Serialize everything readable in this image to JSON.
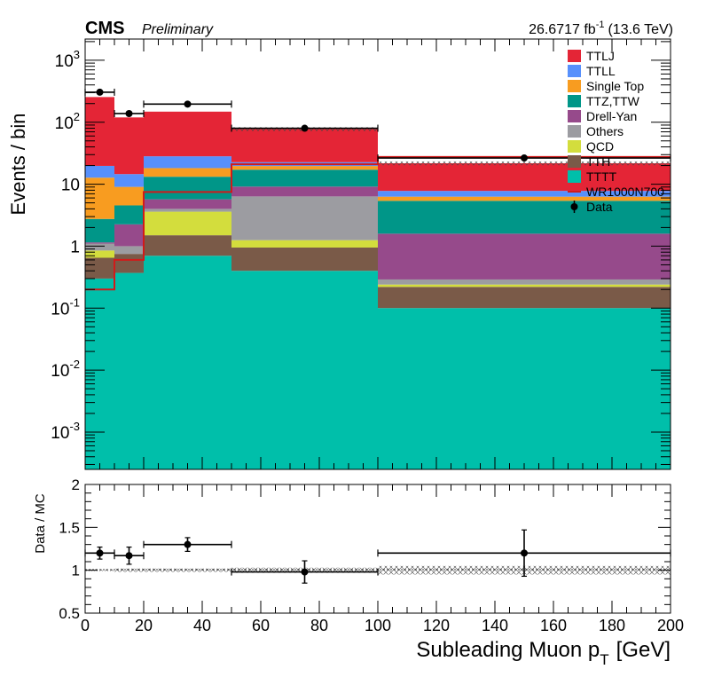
{
  "header": {
    "cms": "CMS",
    "preliminary": "Preliminary",
    "lumi": "26.6717 fb",
    "lumi_sup": "-1",
    "energy": "(13.6 TeV)"
  },
  "colors": {
    "TTLJ": "#e42536",
    "TTLL": "#5790fc",
    "Single Top": "#f89c20",
    "TTZ,TTW": "#009688",
    "Drell-Yan": "#964a8b",
    "Others": "#9c9ca1",
    "QCD": "#d3dd3d",
    "TTH": "#7a5a48",
    "TTTT": "#00bfaa",
    "WR1000N700": "#d11a1a",
    "Data": "#000000"
  },
  "chart_data": [
    {
      "type": "bar",
      "subtype": "stacked histogram (log scale)",
      "ylabel": "Events / bin",
      "yscale": "log",
      "ylim": [
        0.00025,
        2200
      ],
      "xlim": [
        0,
        200
      ],
      "ytick_labels": [
        "10^{-3}",
        "10^{-2}",
        "10^{-1}",
        "1",
        "10",
        "10^{2}",
        "10^{3}"
      ],
      "bin_edges": [
        0,
        10,
        20,
        50,
        100,
        200
      ],
      "stack_order_bottom_to_top": [
        "TTTT",
        "TTH",
        "QCD",
        "Others",
        "Drell-Yan",
        "TTZ,TTW",
        "Single Top",
        "TTLL",
        "TTLJ"
      ],
      "series": [
        {
          "name": "TTTT",
          "values": [
            0.3,
            0.37,
            0.7,
            0.4,
            0.1
          ]
        },
        {
          "name": "TTH",
          "values": [
            0.35,
            0.38,
            0.8,
            0.55,
            0.12
          ]
        },
        {
          "name": "QCD",
          "values": [
            0.2,
            0.0,
            2.1,
            0.3,
            0.02
          ]
        },
        {
          "name": "Others",
          "values": [
            0.25,
            0.25,
            0.4,
            5.1,
            0.05
          ]
        },
        {
          "name": "Drell-Yan",
          "values": [
            0.05,
            1.25,
            1.7,
            2.8,
            1.3
          ]
        },
        {
          "name": "TTZ,TTW",
          "values": [
            1.6,
            2.3,
            7.5,
            8.0,
            3.8
          ]
        },
        {
          "name": "Single Top",
          "values": [
            10.0,
            4.5,
            5.0,
            2.5,
            0.9
          ]
        },
        {
          "name": "TTLL",
          "values": [
            7.0,
            5.5,
            10.0,
            3.0,
            1.5
          ]
        },
        {
          "name": "TTLJ",
          "values": [
            235,
            105,
            120,
            55,
            14
          ]
        }
      ],
      "signal": {
        "name": "WR1000N700",
        "values": [
          0.2,
          0.6,
          7.5,
          21.0,
          27.5
        ]
      },
      "data": {
        "name": "Data",
        "x": [
          5,
          15,
          35,
          75,
          150
        ],
        "x_halfwidth": [
          5,
          5,
          15,
          25,
          50
        ],
        "y": [
          305,
          138,
          196,
          80,
          26.5
        ]
      },
      "legend_position": "top-right",
      "legend": [
        {
          "label": "TTLJ",
          "kind": "fill"
        },
        {
          "label": "TTLL",
          "kind": "fill"
        },
        {
          "label": "Single Top",
          "kind": "fill"
        },
        {
          "label": "TTZ,TTW",
          "kind": "fill"
        },
        {
          "label": "Drell-Yan",
          "kind": "fill"
        },
        {
          "label": "Others",
          "kind": "fill"
        },
        {
          "label": "QCD",
          "kind": "fill"
        },
        {
          "label": "TTH",
          "kind": "fill"
        },
        {
          "label": "TTTT",
          "kind": "fill"
        },
        {
          "label": "WR1000N700",
          "kind": "line"
        },
        {
          "label": "Data",
          "kind": "marker"
        }
      ]
    },
    {
      "type": "scatter",
      "subtype": "ratio panel",
      "xlabel": "Subleading Muon p",
      "xlabel_sub": "T",
      "xlabel_unit": "[GeV]",
      "ylabel": "Data / MC",
      "xlim": [
        0,
        200
      ],
      "ylim": [
        0.5,
        2
      ],
      "xtick_labels": [
        "0",
        "20",
        "40",
        "60",
        "80",
        "100",
        "120",
        "140",
        "160",
        "180",
        "200"
      ],
      "ytick_labels": [
        "0.5",
        "1",
        "1.5",
        "2"
      ],
      "x": [
        5,
        15,
        35,
        75,
        150
      ],
      "x_halfwidth": [
        5,
        5,
        15,
        25,
        50
      ],
      "y": [
        1.2,
        1.17,
        1.3,
        0.98,
        1.2
      ],
      "y_err": [
        0.07,
        0.1,
        0.08,
        0.13,
        0.27
      ],
      "mc_unc_band": {
        "bin_edges": [
          0,
          10,
          20,
          50,
          100,
          200
        ],
        "halfwidth": [
          0.01,
          0.02,
          0.02,
          0.03,
          0.05
        ]
      }
    }
  ]
}
